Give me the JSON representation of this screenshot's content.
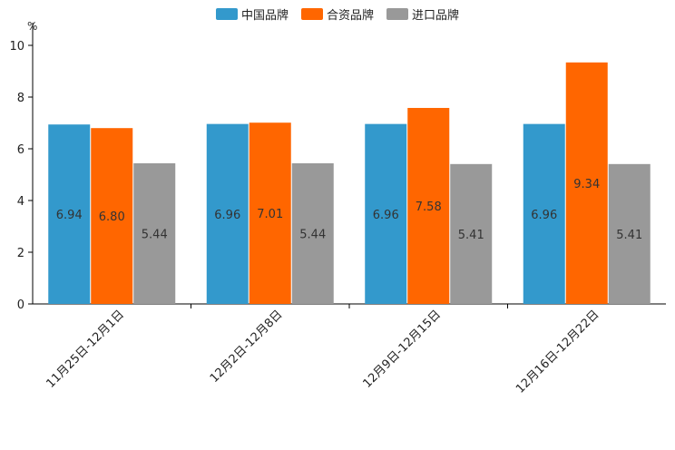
{
  "chart_data": {
    "type": "bar",
    "unit": "%",
    "categories": [
      "11月25日-12月1日",
      "12月2日-12月8日",
      "12月9日-12月15日",
      "12月16日-12月22日"
    ],
    "series": [
      {
        "name": "中国品牌",
        "color": "#3399cc",
        "values": [
          6.94,
          6.96,
          6.96,
          6.96
        ],
        "labels": [
          "6.94",
          "6.96",
          "6.96",
          "6.96"
        ]
      },
      {
        "name": "合资品牌",
        "color": "#ff6600",
        "values": [
          6.8,
          7.01,
          7.58,
          9.34
        ],
        "labels": [
          "6.80",
          "7.01",
          "7.58",
          "9.34"
        ]
      },
      {
        "name": "进口品牌",
        "color": "#999999",
        "values": [
          5.44,
          5.44,
          5.41,
          5.41
        ],
        "labels": [
          "5.44",
          "5.44",
          "5.41",
          "5.41"
        ]
      }
    ],
    "yticks": [
      "0",
      "2",
      "4",
      "6",
      "8",
      "10"
    ],
    "ylim": [
      0,
      10
    ],
    "legend_position": "top-center"
  }
}
